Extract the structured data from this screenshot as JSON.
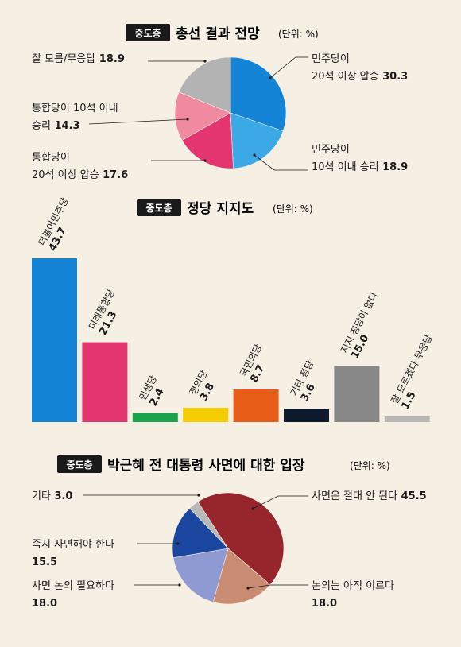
{
  "chart_data": [
    {
      "type": "pie",
      "badge": "중도층",
      "title": "총선 결과 전망",
      "unit": "(단위: %)",
      "slices": [
        {
          "label": [
            "민주당이",
            "20석 이상 압승"
          ],
          "value": 30.3,
          "color": "#1384d6"
        },
        {
          "label": [
            "민주당이",
            "10석 이내 승리"
          ],
          "value": 18.9,
          "color": "#3aa9e6"
        },
        {
          "label": [
            "통합당이",
            "20석 이상 압승"
          ],
          "value": 17.6,
          "color": "#e3356f"
        },
        {
          "label": [
            "통합당이 10석 이내",
            "승리"
          ],
          "value": 14.3,
          "color": "#ef8aa0"
        },
        {
          "label": [
            "잘 모름/무응답"
          ],
          "value": 18.9,
          "color": "#b3b3b3"
        }
      ]
    },
    {
      "type": "bar",
      "badge": "중도층",
      "title": "정당 지지도",
      "unit": "(단위: %)",
      "categories": [
        "더불어민주당",
        "미래통합당",
        "민생당",
        "정의당",
        "국민의당",
        "기타 정당",
        "지지 정당이 없다",
        "잘 모르겠다 무응답"
      ],
      "values": [
        43.7,
        21.3,
        2.4,
        3.8,
        8.7,
        3.6,
        15.0,
        1.5
      ],
      "value_labels": [
        "43.7",
        "21.3",
        "2.4",
        "3.8",
        "8.7",
        "3.6",
        "15.0",
        "1.5"
      ],
      "colors": [
        "#1384d6",
        "#e3356f",
        "#19a34a",
        "#f5cc00",
        "#e85d18",
        "#0e1a2b",
        "#888888",
        "#b8b8b8"
      ]
    },
    {
      "type": "pie",
      "badge": "중도층",
      "title": "박근혜 전 대통령 사면에 대한 입장",
      "unit": "(단위: %)",
      "slices": [
        {
          "label": [
            "사면은 절대 안 된다"
          ],
          "value": 45.5,
          "color": "#97262c"
        },
        {
          "label": [
            "논의는 아직 이르다"
          ],
          "value": 18.0,
          "color": "#c98c73"
        },
        {
          "label": [
            "사면 논의 필요하다"
          ],
          "value": 18.0,
          "color": "#8f9ad3"
        },
        {
          "label": [
            "즉시 사면해야 한다"
          ],
          "value": 15.5,
          "color": "#1b46a0"
        },
        {
          "label": [
            "기타"
          ],
          "value": 3.0,
          "color": "#b8b8b8"
        }
      ]
    }
  ]
}
